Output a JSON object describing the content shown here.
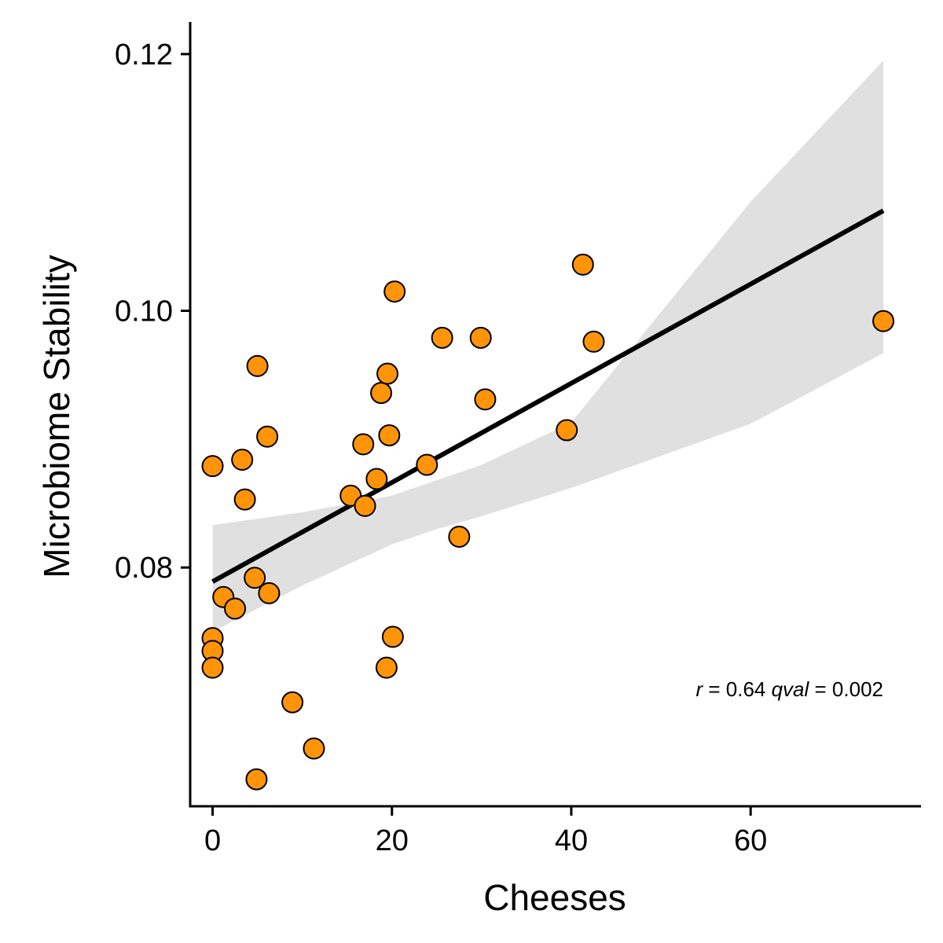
{
  "chart_data": {
    "type": "scatter",
    "xlabel": "Cheeses",
    "ylabel": "Microbiome Stability",
    "xlim": [
      -2.5,
      79
    ],
    "ylim": [
      0.0614,
      0.1225
    ],
    "xticks": [
      0,
      20,
      40,
      60
    ],
    "xtick_labels": [
      "0",
      "20",
      "40",
      "60"
    ],
    "yticks": [
      0.08,
      0.1,
      0.12
    ],
    "ytick_labels": [
      "0.08",
      "0.10",
      "0.12"
    ],
    "grid": false,
    "points": [
      {
        "x": 0,
        "y": 0.0879
      },
      {
        "x": 0,
        "y": 0.0745
      },
      {
        "x": 0,
        "y": 0.0735
      },
      {
        "x": 0,
        "y": 0.0722
      },
      {
        "x": 1.2,
        "y": 0.0777
      },
      {
        "x": 2.5,
        "y": 0.0768
      },
      {
        "x": 3.3,
        "y": 0.0884
      },
      {
        "x": 3.6,
        "y": 0.0853
      },
      {
        "x": 4.7,
        "y": 0.0792
      },
      {
        "x": 5.0,
        "y": 0.0957
      },
      {
        "x": 6.1,
        "y": 0.0902
      },
      {
        "x": 6.3,
        "y": 0.078
      },
      {
        "x": 4.9,
        "y": 0.0635
      },
      {
        "x": 8.9,
        "y": 0.0695
      },
      {
        "x": 11.3,
        "y": 0.0659
      },
      {
        "x": 15.4,
        "y": 0.0856
      },
      {
        "x": 16.8,
        "y": 0.0896
      },
      {
        "x": 17.0,
        "y": 0.0848
      },
      {
        "x": 18.3,
        "y": 0.0869
      },
      {
        "x": 18.8,
        "y": 0.0936
      },
      {
        "x": 19.5,
        "y": 0.0951
      },
      {
        "x": 19.7,
        "y": 0.0903
      },
      {
        "x": 19.4,
        "y": 0.0722
      },
      {
        "x": 20.1,
        "y": 0.0746
      },
      {
        "x": 20.3,
        "y": 0.1015
      },
      {
        "x": 23.9,
        "y": 0.088
      },
      {
        "x": 25.6,
        "y": 0.0979
      },
      {
        "x": 27.5,
        "y": 0.0824
      },
      {
        "x": 29.9,
        "y": 0.0979
      },
      {
        "x": 30.4,
        "y": 0.0931
      },
      {
        "x": 39.5,
        "y": 0.0907
      },
      {
        "x": 41.3,
        "y": 0.1036
      },
      {
        "x": 42.5,
        "y": 0.0976
      },
      {
        "x": 74.8,
        "y": 0.0992
      }
    ],
    "fit_line": {
      "x": [
        0,
        74.8
      ],
      "y": [
        0.0789,
        0.1078
      ]
    },
    "confidence_band": {
      "x": [
        0,
        10,
        20,
        25,
        30,
        40,
        50,
        60,
        74.8
      ],
      "lower": [
        0.075,
        0.0786,
        0.0818,
        0.083,
        0.084,
        0.0862,
        0.0887,
        0.0912,
        0.0967
      ],
      "upper": [
        0.0833,
        0.0843,
        0.0856,
        0.0868,
        0.088,
        0.0913,
        0.0999,
        0.1085,
        0.1195
      ]
    },
    "colors": {
      "point_fill": "#ff9408",
      "point_stroke": "#000000",
      "fit_line": "#000000",
      "band": "#e0e0e0",
      "axis": "#000000"
    },
    "annotation": {
      "r_symbol": "r",
      "r_text": " = 0.64 ",
      "q_symbol": "qval",
      "q_text": " = 0.002",
      "placement": "bottom-right"
    }
  }
}
